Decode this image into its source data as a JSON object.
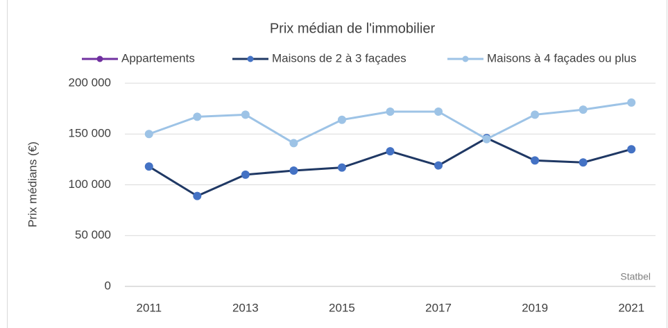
{
  "chart_data": {
    "type": "line",
    "title": "Prix médian de l'immobilier",
    "y_label": "Prix médians (€)",
    "annotation": "Statbel",
    "categories": [
      "2011",
      null,
      "2013",
      null,
      "2015",
      null,
      "2017",
      null,
      "2019",
      null,
      "2021"
    ],
    "series": [
      {
        "name": "Appartements",
        "color": "#7030a0",
        "values": [
          null,
          null,
          null,
          null,
          null,
          null,
          null,
          null,
          null,
          null,
          null
        ]
      },
      {
        "name": "Maisons de 2 à 3 façades",
        "color": "#1f3864",
        "marker_color": "#4472c4",
        "values": [
          118000,
          89000,
          110000,
          114000,
          117000,
          133000,
          119000,
          146000,
          124000,
          122000,
          135000
        ]
      },
      {
        "name": "Maisons à 4 façades ou plus",
        "color": "#9dc3e6",
        "values": [
          150000,
          167000,
          169000,
          141000,
          164000,
          172000,
          172000,
          145000,
          169000,
          174000,
          181000
        ]
      }
    ],
    "ylim": [
      0,
      200000
    ],
    "yticks": [
      {
        "value": 0,
        "label": "0"
      },
      {
        "value": 50000,
        "label": "50 000"
      },
      {
        "value": 100000,
        "label": "100 000"
      },
      {
        "value": 150000,
        "label": "150 000"
      },
      {
        "value": 200000,
        "label": "200 000"
      }
    ],
    "grid": true,
    "legend": "top"
  }
}
